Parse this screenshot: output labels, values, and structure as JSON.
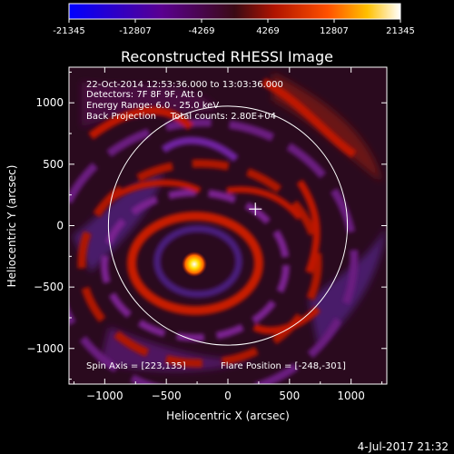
{
  "colorbar": {
    "ticks": [
      "-21345",
      "-12807",
      "-4269",
      "4269",
      "12807",
      "21345"
    ],
    "range": [
      -21345,
      21345
    ],
    "colors": [
      "#0000ff",
      "#6a0090",
      "#3c0c1a",
      "#c01800",
      "#ff6000",
      "#ffd000",
      "#ffffff"
    ]
  },
  "chart_data": {
    "type": "heatmap",
    "title": "Reconstructed RHESSI Image",
    "xlabel": "Heliocentric X (arcsec)",
    "ylabel": "Heliocentric Y (arcsec)",
    "xlim": [
      -1290,
      1290
    ],
    "ylim": [
      -1290,
      1290
    ],
    "xticks": [
      -1000,
      -500,
      0,
      500,
      1000
    ],
    "yticks": [
      -1000,
      -500,
      0,
      500,
      1000
    ],
    "xtick_labels": [
      "−1000",
      "−500",
      "0",
      "500",
      "1000"
    ],
    "ytick_labels": [
      "−1000",
      "−500",
      "0",
      "500",
      "1000"
    ],
    "solar_disk_radius_arcsec": 970,
    "spin_axis": [
      223,
      135
    ],
    "flare_position": [
      -248,
      -301
    ],
    "info_lines": [
      "22-Oct-2014 12:53:36.000 to 13:03:36.000",
      "Detectors: 7F 8F 9F, Att 0",
      "Energy Range: 6.0 - 25.0 keV",
      "Back Projection     Total counts: 2.80E+04"
    ],
    "footer_left": "Spin Axis = [223,135]",
    "footer_right": "Flare Position = [-248,-301]"
  },
  "timestamp": "4-Jul-2017 21:32"
}
